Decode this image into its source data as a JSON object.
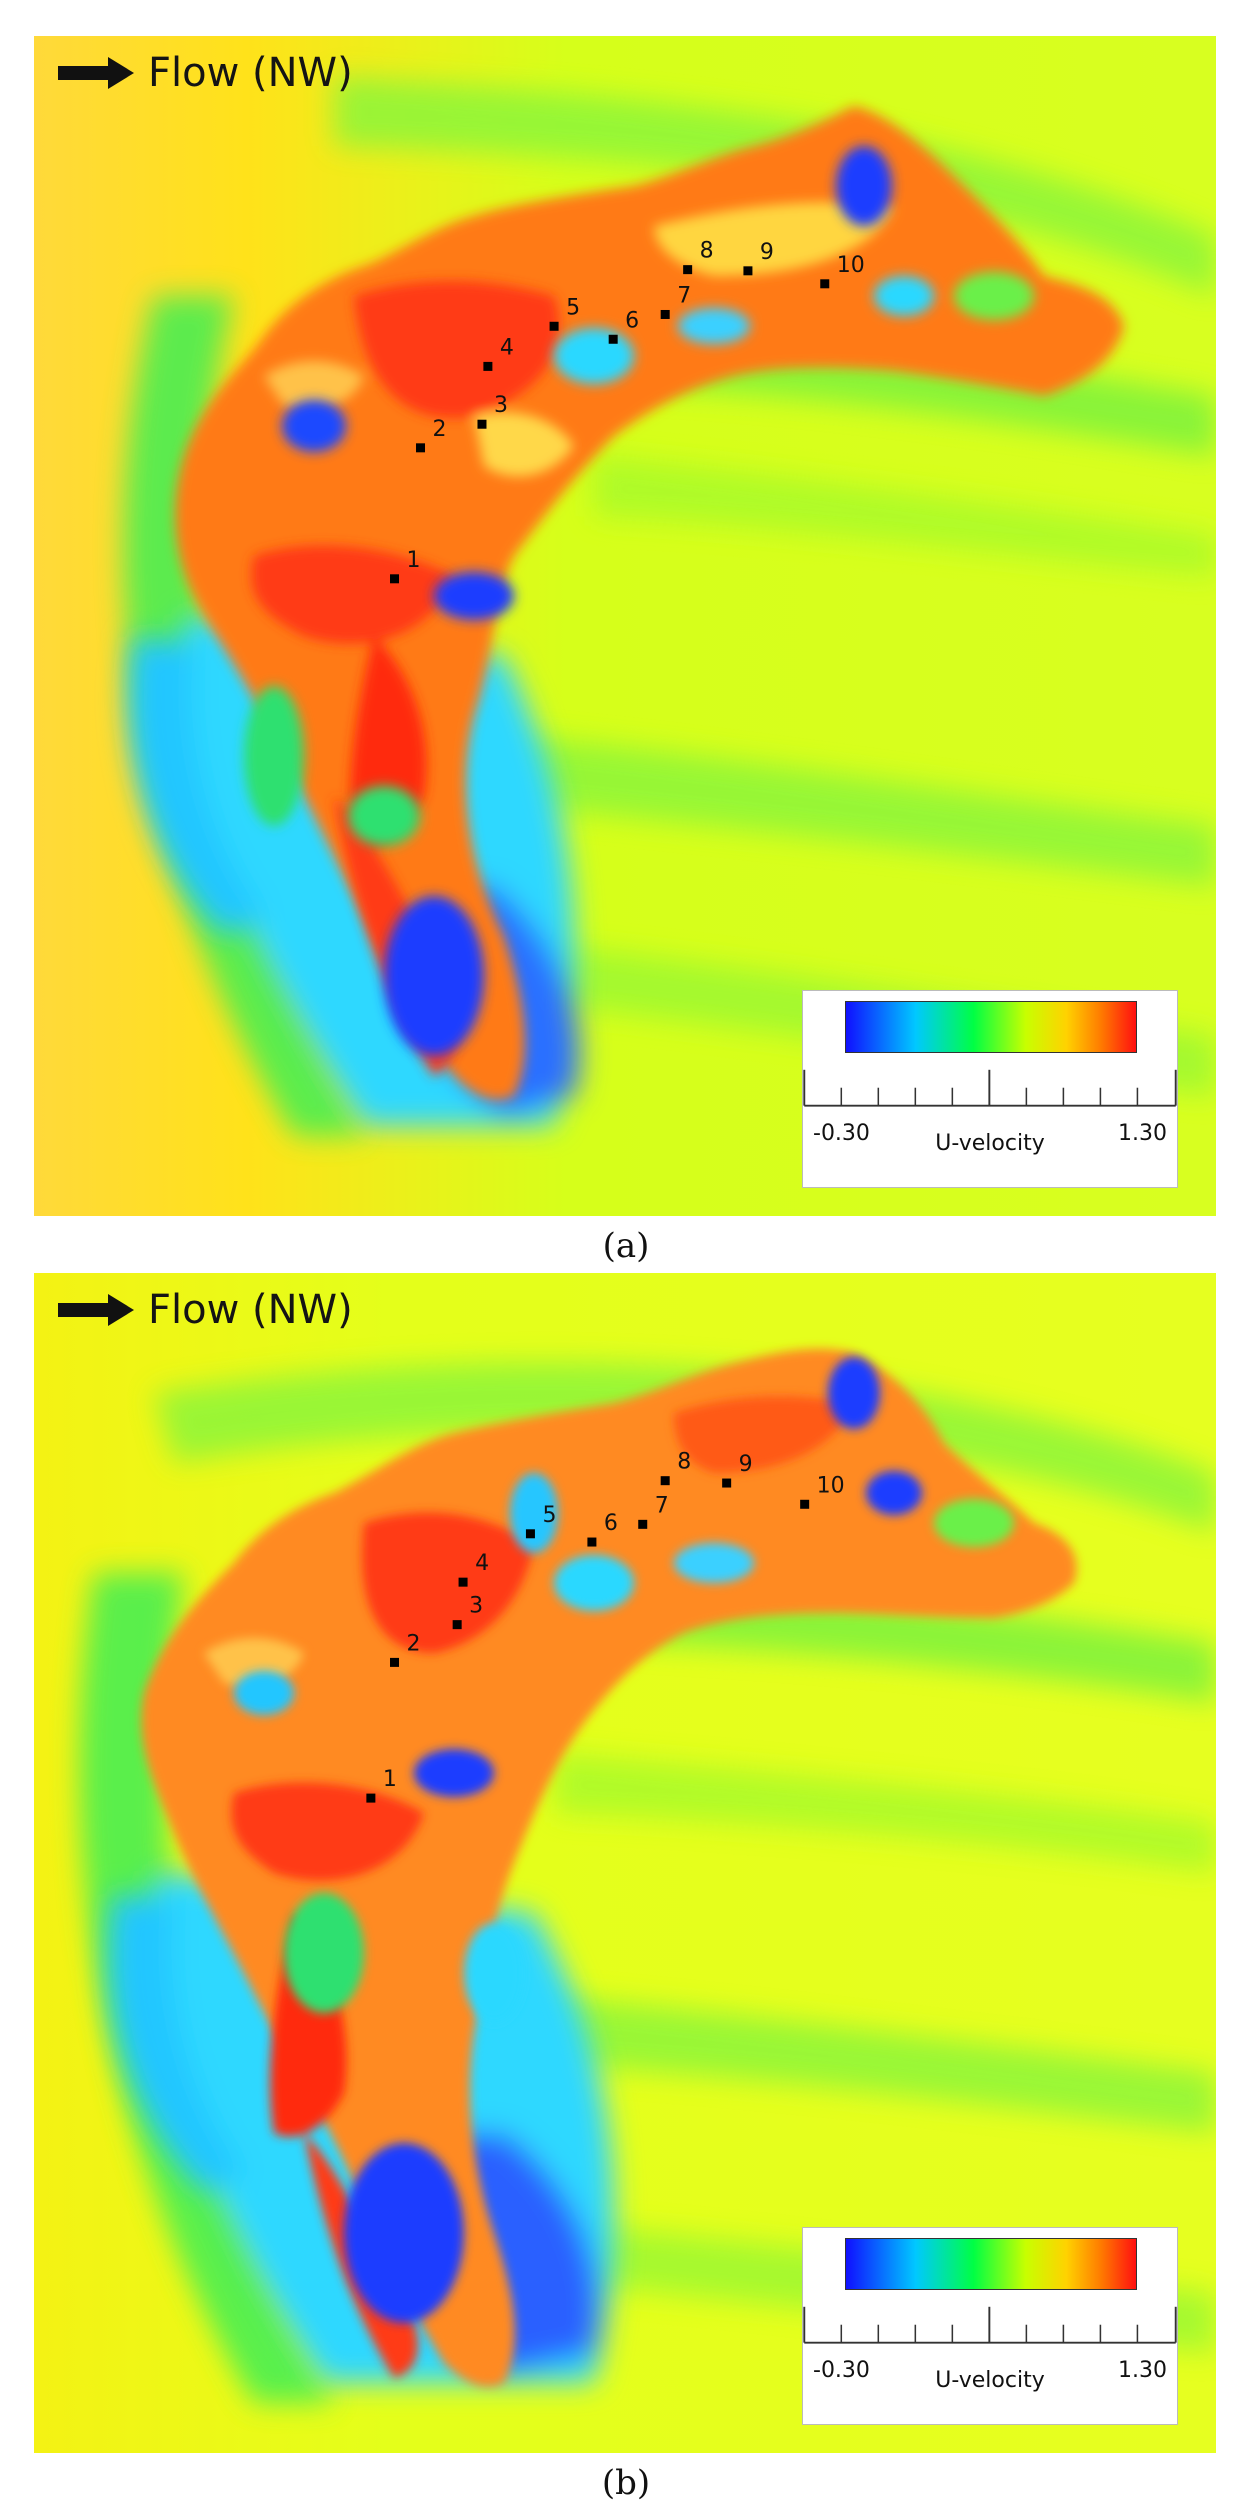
{
  "panels": [
    {
      "id": "a",
      "caption": "(a)",
      "flow_label": "Flow (NW)",
      "points": [
        {
          "label": "1",
          "x": 0.305,
          "y": 0.46
        },
        {
          "label": "2",
          "x": 0.327,
          "y": 0.349
        },
        {
          "label": "3",
          "x": 0.379,
          "y": 0.329
        },
        {
          "label": "4",
          "x": 0.384,
          "y": 0.28
        },
        {
          "label": "5",
          "x": 0.44,
          "y": 0.246
        },
        {
          "label": "6",
          "x": 0.49,
          "y": 0.257
        },
        {
          "label": "7",
          "x": 0.534,
          "y": 0.236
        },
        {
          "label": "8",
          "x": 0.553,
          "y": 0.198
        },
        {
          "label": "9",
          "x": 0.604,
          "y": 0.199
        },
        {
          "label": "10",
          "x": 0.669,
          "y": 0.21
        }
      ],
      "legend": {
        "min_label": "-0.30",
        "max_label": "1.30",
        "title": "U-velocity"
      }
    },
    {
      "id": "b",
      "caption": "(b)",
      "flow_label": "Flow (NW)",
      "points": [
        {
          "label": "1",
          "x": 0.285,
          "y": 0.445
        },
        {
          "label": "2",
          "x": 0.305,
          "y": 0.33
        },
        {
          "label": "3",
          "x": 0.358,
          "y": 0.298
        },
        {
          "label": "4",
          "x": 0.363,
          "y": 0.262
        },
        {
          "label": "5",
          "x": 0.42,
          "y": 0.221
        },
        {
          "label": "6",
          "x": 0.472,
          "y": 0.228
        },
        {
          "label": "7",
          "x": 0.515,
          "y": 0.213
        },
        {
          "label": "8",
          "x": 0.534,
          "y": 0.176
        },
        {
          "label": "9",
          "x": 0.586,
          "y": 0.178
        },
        {
          "label": "10",
          "x": 0.652,
          "y": 0.196
        }
      ],
      "legend": {
        "min_label": "-0.30",
        "max_label": "1.30",
        "title": "U-velocity"
      }
    }
  ],
  "colors": {
    "background_yellow": "#ffe21a",
    "far_field": "#c8ff00",
    "wake_green": "#44f04a",
    "low_blue": "#1a3cff",
    "mid_cyan": "#29e6ff",
    "high_orange": "#ff7a10",
    "high_red": "#ff2a10"
  }
}
